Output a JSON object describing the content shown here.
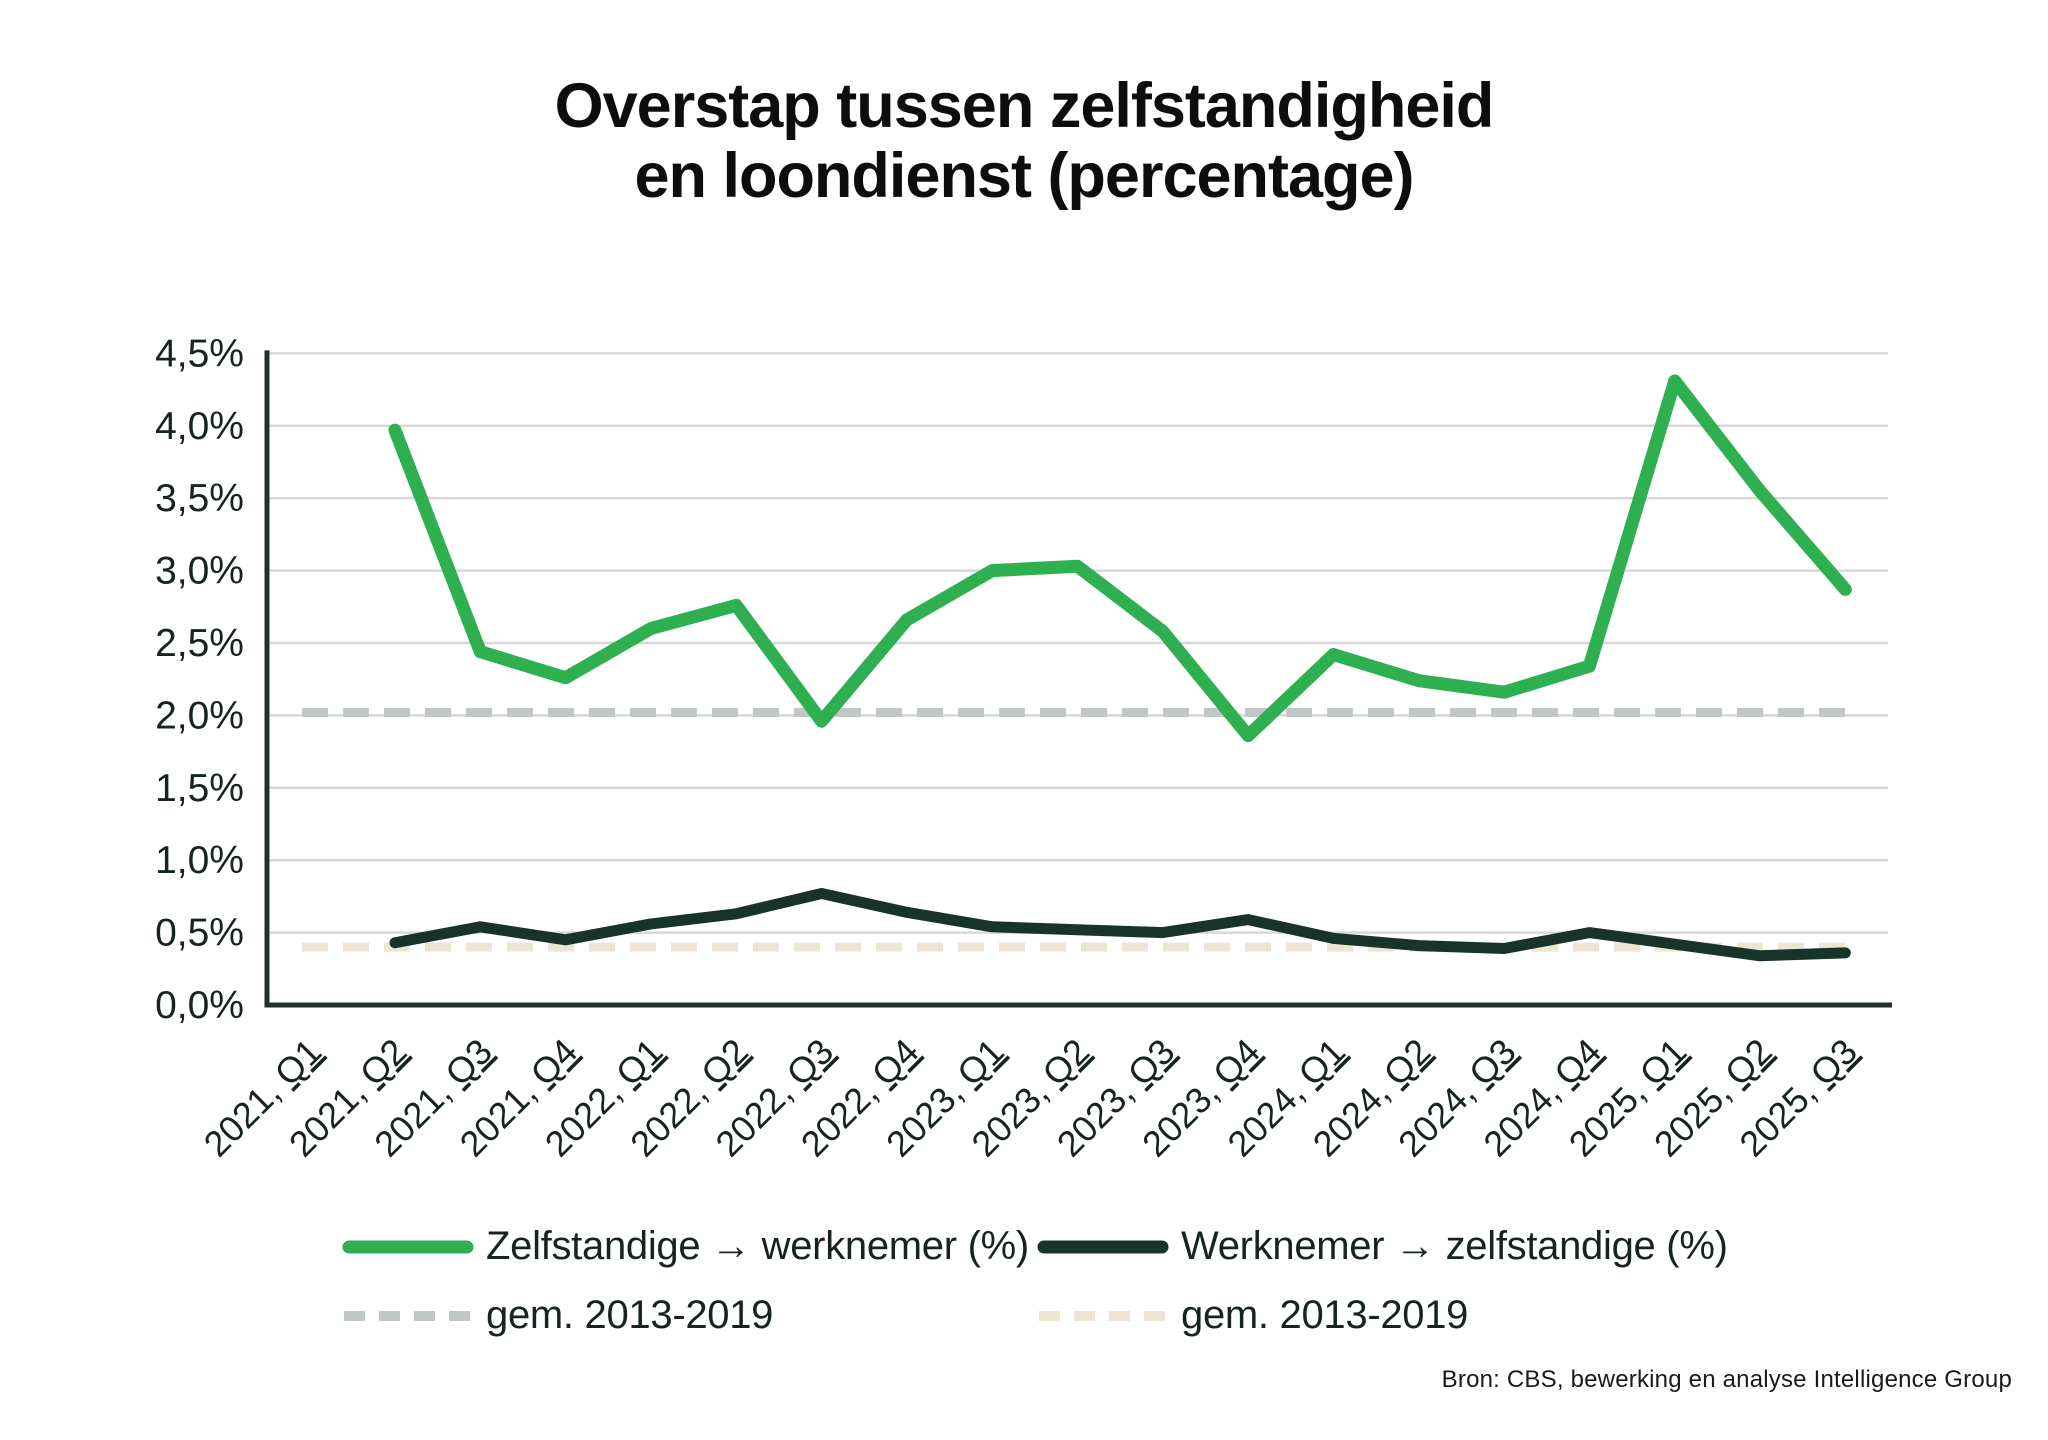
{
  "title": {
    "line1": "Overstap tussen zelfstandigheid",
    "line2": "en loondienst (percentage)"
  },
  "source_note": "Bron: CBS, bewerking en analyse Intelligence Group",
  "colors": {
    "background": "#ffffff",
    "title_text": "#0d0d0d",
    "axis_text": "#17231f",
    "grid_line": "#d8d8d8",
    "axis_line": "#20312c"
  },
  "chart_data": {
    "type": "line",
    "title": "Overstap tussen zelfstandigheid en loondienst (percentage)",
    "categories": [
      "2021, Q1",
      "2021, Q2",
      "2021, Q3",
      "2021, Q4",
      "2022, Q1",
      "2022, Q2",
      "2022, Q3",
      "2022, Q4",
      "2023, Q1",
      "2023, Q2",
      "2023, Q3",
      "2023, Q4",
      "2024, Q1",
      "2024, Q2",
      "2024, Q3",
      "2024, Q4",
      "2025, Q1",
      "2025, Q2",
      "2025, Q3"
    ],
    "y_tick_labels": [
      "0,0%",
      "0,5%",
      "1,0%",
      "1,5%",
      "2,0%",
      "2,5%",
      "3,0%",
      "3,5%",
      "4,0%",
      "4,5%"
    ],
    "ylim": [
      0,
      4.5
    ],
    "y_step": 0.5,
    "grid": true,
    "legend_position": "bottom",
    "series": [
      {
        "name": "Zelfstandige → werknemer (%)",
        "type": "line",
        "style": "solid",
        "color": "#2eb050",
        "values": [
          null,
          3.97,
          2.44,
          2.26,
          2.6,
          2.76,
          1.96,
          2.66,
          3.0,
          3.03,
          2.58,
          1.86,
          2.42,
          2.24,
          2.16,
          2.34,
          4.31,
          3.55,
          2.87
        ]
      },
      {
        "name": "Werknemer → zelfstandige (%)",
        "type": "line",
        "style": "solid",
        "color": "#17332a",
        "values": [
          null,
          0.43,
          0.54,
          0.45,
          0.56,
          0.63,
          0.77,
          0.64,
          0.54,
          0.52,
          0.5,
          0.59,
          0.46,
          0.41,
          0.39,
          0.5,
          0.42,
          0.34,
          0.36
        ]
      },
      {
        "name": "gem. 2013-2019",
        "type": "reference-line",
        "style": "dashed",
        "color": "#c1c7c6",
        "value": 2.02
      },
      {
        "name": "gem. 2013-2019",
        "type": "reference-line",
        "style": "dashed",
        "color": "#ece5d2",
        "value": 0.4
      }
    ]
  }
}
